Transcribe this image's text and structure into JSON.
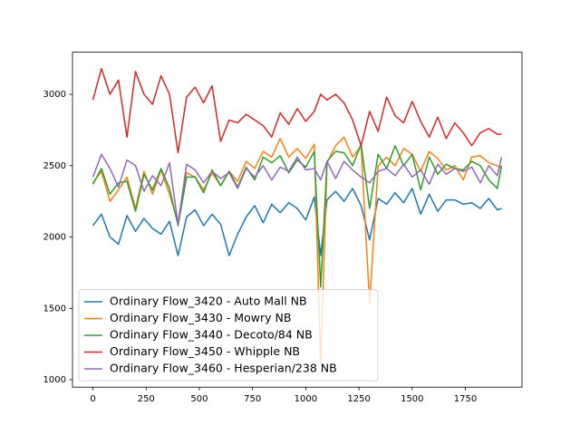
{
  "chart_data": {
    "type": "line",
    "x": [
      0,
      40,
      80,
      120,
      160,
      200,
      240,
      280,
      320,
      360,
      400,
      440,
      480,
      520,
      560,
      600,
      640,
      680,
      720,
      760,
      800,
      840,
      880,
      920,
      960,
      1000,
      1040,
      1070,
      1100,
      1140,
      1180,
      1220,
      1260,
      1300,
      1340,
      1380,
      1420,
      1460,
      1500,
      1540,
      1580,
      1620,
      1660,
      1700,
      1740,
      1780,
      1820,
      1860,
      1900,
      1920
    ],
    "series": [
      {
        "name": "Ordinary Flow_3420 - Auto Mall NB",
        "color": "#1f77b4",
        "values": [
          2080,
          2160,
          2000,
          1950,
          2150,
          2040,
          2130,
          2060,
          2020,
          2110,
          1870,
          2140,
          2190,
          2080,
          2160,
          2090,
          1870,
          2020,
          2140,
          2220,
          2100,
          2230,
          2170,
          2240,
          2200,
          2120,
          2280,
          1870,
          2260,
          2320,
          2250,
          2340,
          2220,
          1980,
          2270,
          2230,
          2310,
          2240,
          2340,
          2160,
          2300,
          2180,
          2260,
          2260,
          2230,
          2240,
          2200,
          2270,
          2190,
          2200
        ]
      },
      {
        "name": "Ordinary Flow_3430 - Mowry NB",
        "color": "#ff7f0e",
        "values": [
          2380,
          2460,
          2250,
          2330,
          2420,
          2200,
          2460,
          2300,
          2470,
          2300,
          2100,
          2450,
          2420,
          2330,
          2450,
          2360,
          2460,
          2390,
          2530,
          2480,
          2600,
          2560,
          2690,
          2560,
          2620,
          2550,
          2650,
          1100,
          2520,
          2640,
          2700,
          2560,
          2640,
          1530,
          2500,
          2560,
          2500,
          2620,
          2580,
          2460,
          2600,
          2550,
          2470,
          2500,
          2400,
          2560,
          2570,
          2520,
          2500,
          2480
        ]
      },
      {
        "name": "Ordinary Flow_3440 - Decoto/84 NB",
        "color": "#2ca02c",
        "values": [
          2370,
          2480,
          2300,
          2380,
          2390,
          2180,
          2440,
          2330,
          2480,
          2340,
          2080,
          2420,
          2420,
          2310,
          2470,
          2360,
          2460,
          2350,
          2490,
          2400,
          2560,
          2520,
          2570,
          2450,
          2540,
          2490,
          2600,
          1650,
          2530,
          2600,
          2590,
          2500,
          2650,
          2200,
          2580,
          2480,
          2640,
          2500,
          2580,
          2330,
          2560,
          2440,
          2510,
          2480,
          2470,
          2530,
          2500,
          2400,
          2340,
          2500
        ]
      },
      {
        "name": "Ordinary Flow_3450 - Whipple NB",
        "color": "#d62728",
        "values": [
          2960,
          3180,
          3000,
          3100,
          2700,
          3160,
          3000,
          2930,
          3130,
          3000,
          2590,
          2980,
          3050,
          2940,
          3060,
          2670,
          2820,
          2800,
          2860,
          2820,
          2780,
          2700,
          2870,
          2790,
          2900,
          2810,
          2880,
          3000,
          2960,
          3000,
          2940,
          2820,
          2640,
          2880,
          2740,
          2980,
          2850,
          2800,
          2950,
          2810,
          2700,
          2840,
          2690,
          2800,
          2730,
          2640,
          2730,
          2760,
          2720,
          2720
        ]
      },
      {
        "name": "Ordinary Flow_3460 - Hesperian/238 NB",
        "color": "#9467bd",
        "values": [
          2420,
          2580,
          2480,
          2350,
          2540,
          2500,
          2320,
          2430,
          2360,
          2520,
          2090,
          2510,
          2470,
          2380,
          2460,
          2410,
          2450,
          2340,
          2480,
          2420,
          2500,
          2400,
          2490,
          2460,
          2560,
          2470,
          2480,
          2400,
          2530,
          2410,
          2530,
          2470,
          2420,
          2380,
          2460,
          2480,
          2430,
          2510,
          2420,
          2470,
          2370,
          2510,
          2440,
          2480,
          2460,
          2490,
          2380,
          2500,
          2430,
          2560
        ]
      }
    ],
    "xlim": [
      -96,
      2016
    ],
    "xticks": [
      0,
      250,
      500,
      750,
      1000,
      1250,
      1500,
      1750
    ],
    "ylim": [
      948,
      3295
    ],
    "yticks": [
      1000,
      1500,
      2000,
      2500,
      3000
    ],
    "legend": "lower left"
  }
}
